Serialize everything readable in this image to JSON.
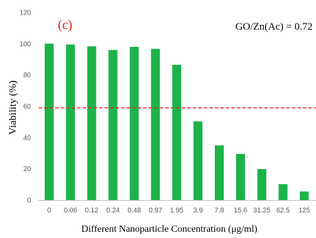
{
  "chart_data": {
    "type": "bar",
    "panel_label": "(c)",
    "annotation": "GO/Zn(Ac) = 0.72",
    "xlabel": "Different Nanoparticle Concentration (μg/ml)",
    "ylabel": "Viability (%)",
    "categories": [
      "0",
      "0.06",
      "0.12",
      "0.24",
      "0.48",
      "0.97",
      "1.95",
      "3.9",
      "7.8",
      "15.6",
      "31.25",
      "62.5",
      "125"
    ],
    "values": [
      100,
      99.5,
      98.3,
      96,
      98,
      96.7,
      86.5,
      50.3,
      35,
      29.5,
      19.8,
      10.2,
      5.5
    ],
    "ylim": [
      0,
      120
    ],
    "yticks": [
      0,
      20,
      40,
      60,
      80,
      100,
      120
    ],
    "threshold": 59,
    "grid": false,
    "colors": {
      "bar": "#1db34a",
      "threshold_line": "#ee1c1c",
      "panel_label": "#ee1c1c",
      "axis": "#bfbfbf"
    }
  }
}
